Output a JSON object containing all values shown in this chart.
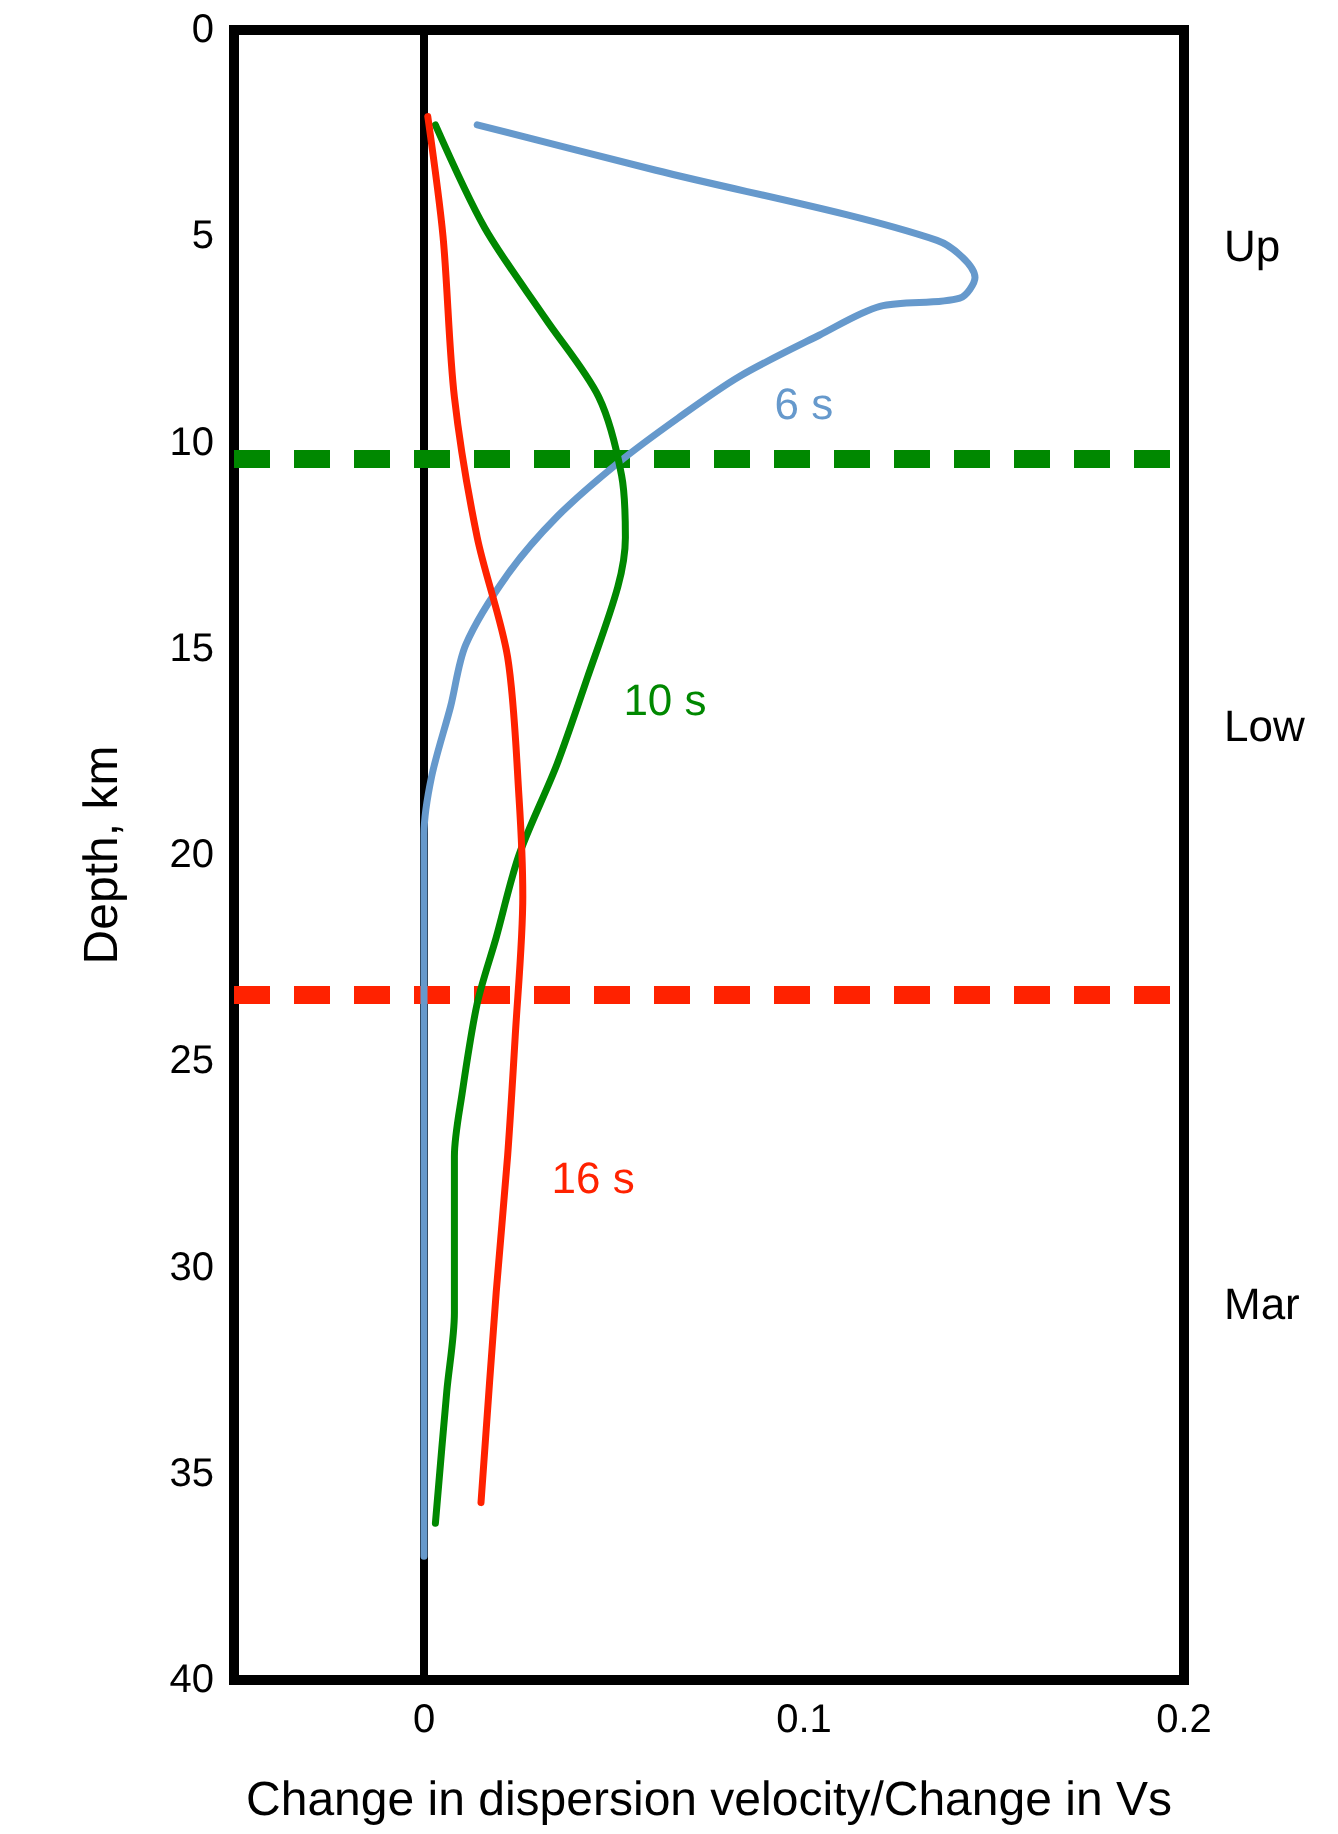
{
  "chart_data": {
    "type": "line",
    "xlabel": "Change in dispersion velocity/Change in Vs",
    "ylabel": "Depth, km",
    "xlim": [
      -0.05,
      0.2
    ],
    "xticks": [
      0,
      0.1,
      0.2
    ],
    "ylim": [
      40,
      0
    ],
    "yticks": [
      0,
      5,
      10,
      15,
      20,
      25,
      30,
      35,
      40
    ],
    "grid": false,
    "legend": false,
    "marker": "none",
    "line_style": "solid",
    "series": [
      {
        "name": "6 s",
        "color": "#6699cc",
        "x": [
          0.014,
          0.061,
          0.135,
          0.145,
          0.141,
          0.12,
          0.104,
          0.083,
          0.067,
          0.051,
          0.035,
          0.022,
          0.011,
          0.007,
          0.002,
          0,
          0
        ],
        "values": [
          2.3,
          3.4,
          5.1,
          6.0,
          6.5,
          6.7,
          7.4,
          8.4,
          9.4,
          10.5,
          11.8,
          13.2,
          14.9,
          16.4,
          18.1,
          19.5,
          37
        ]
      },
      {
        "name": "10 s",
        "color": "#008800",
        "x": [
          0.003,
          0.016,
          0.032,
          0.046,
          0.052,
          0.053,
          0.051,
          0.043,
          0.035,
          0.025,
          0.019,
          0.014,
          0.01,
          0.008,
          0.008,
          0.006,
          0.003
        ],
        "values": [
          2.3,
          4.8,
          7.0,
          8.9,
          10.8,
          12.3,
          13.5,
          15.7,
          17.8,
          20,
          22,
          23.6,
          25.8,
          27.3,
          31.1,
          33,
          36.2
        ]
      },
      {
        "name": "16 s",
        "color": "#ff2200",
        "x": [
          0.001,
          0.005,
          0.008,
          0.014,
          0.022,
          0.025,
          0.026,
          0.024,
          0.022,
          0.019,
          0.015
        ],
        "values": [
          2.1,
          5.0,
          8.9,
          12.3,
          15.2,
          18.6,
          21.0,
          24.4,
          27.3,
          30.6,
          35.7
        ]
      }
    ],
    "ref_lines": [
      {
        "axis": "x",
        "value": 0,
        "color": "#000000",
        "line_style": "solid"
      },
      {
        "axis": "y",
        "value": 10.4,
        "color": "#008800",
        "line_style": "dashed"
      },
      {
        "axis": "y",
        "value": 23.4,
        "color": "#ff2200",
        "line_style": "dashed"
      }
    ],
    "annotations": [
      "Up",
      "Low",
      "Mar"
    ]
  }
}
